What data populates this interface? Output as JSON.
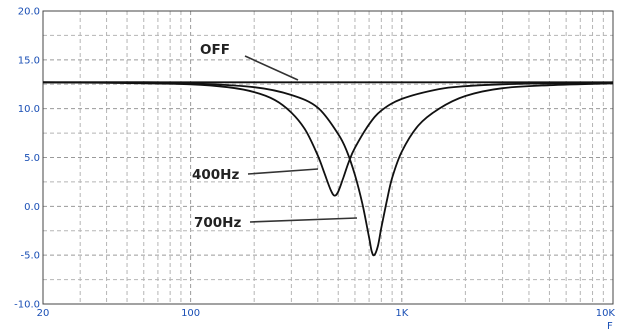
{
  "chart_data": {
    "type": "line",
    "x_scale": "log",
    "xlim": [
      20,
      10000
    ],
    "ylim": [
      -10,
      20
    ],
    "grid": true,
    "y_ticks": [
      "20.0",
      "15.0",
      "10.0",
      "5.0",
      "0.0",
      "-5.0",
      "-10.0"
    ],
    "x_ticks": [
      {
        "value": 20,
        "label": "20"
      },
      {
        "value": 100,
        "label": "100"
      },
      {
        "value": 1000,
        "label": "1K"
      },
      {
        "value": 10000,
        "label": "10K"
      }
    ],
    "xlabel": "F",
    "series": [
      {
        "name": "OFF",
        "x": [
          20,
          10000
        ],
        "y": [
          12.7,
          12.7
        ]
      },
      {
        "name": "400Hz",
        "x": [
          20,
          60,
          100,
          150,
          200,
          250,
          300,
          350,
          400,
          430,
          460,
          480,
          500,
          530,
          560,
          600,
          700,
          800,
          1000,
          1500,
          2000,
          3000,
          5000,
          7000,
          10000
        ],
        "y": [
          12.7,
          12.6,
          12.5,
          12.2,
          11.7,
          10.9,
          9.6,
          7.8,
          5.2,
          3.4,
          1.7,
          1.1,
          1.5,
          3.0,
          4.5,
          6.0,
          8.4,
          9.8,
          11.0,
          12.0,
          12.3,
          12.5,
          12.6,
          12.6,
          12.7
        ]
      },
      {
        "name": "700Hz",
        "x": [
          20,
          60,
          100,
          200,
          300,
          400,
          500,
          550,
          600,
          650,
          700,
          720,
          740,
          770,
          800,
          850,
          900,
          1000,
          1200,
          1500,
          2000,
          3000,
          5000,
          10000
        ],
        "y": [
          12.7,
          12.7,
          12.6,
          12.2,
          11.4,
          10.1,
          7.4,
          5.6,
          3.2,
          0.3,
          -3.2,
          -4.6,
          -5.0,
          -4.1,
          -2.2,
          0.6,
          2.9,
          5.6,
          8.3,
          10.0,
          11.3,
          12.1,
          12.4,
          12.6
        ]
      }
    ],
    "annotations": [
      {
        "text": "OFF",
        "series": "OFF"
      },
      {
        "text": "400Hz",
        "series": "400Hz"
      },
      {
        "text": "700Hz",
        "series": "700Hz"
      }
    ]
  }
}
